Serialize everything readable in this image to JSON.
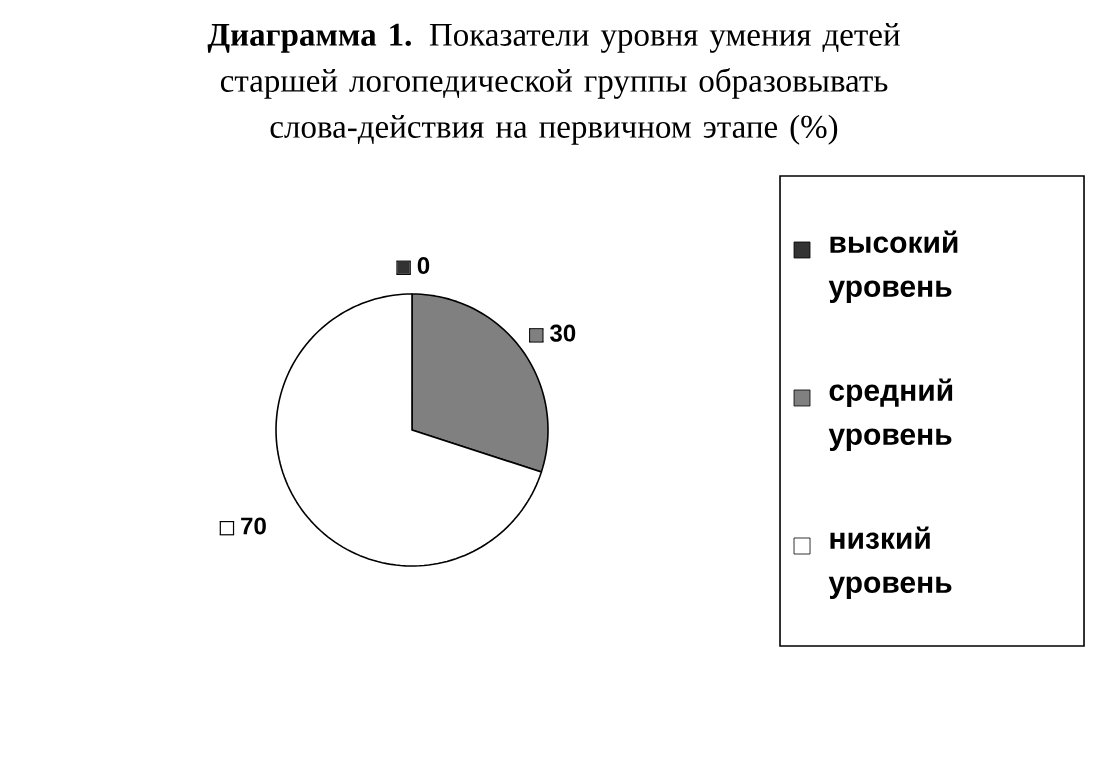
{
  "chart_data": {
    "type": "pie",
    "title": "**Диаграмма 1.** Показатели уровня умения детей старшей логопедической группы образовывать слова-действия на первичном этапе  (%)",
    "categories": [
      "высокий уровень",
      "средний уровень",
      "низкий уровень"
    ],
    "values": [
      0,
      30,
      70
    ],
    "colors": [
      "#333333",
      "#808080",
      "#ffffff"
    ],
    "value_labels": [
      "0",
      "30",
      "70"
    ],
    "legend": "right"
  }
}
